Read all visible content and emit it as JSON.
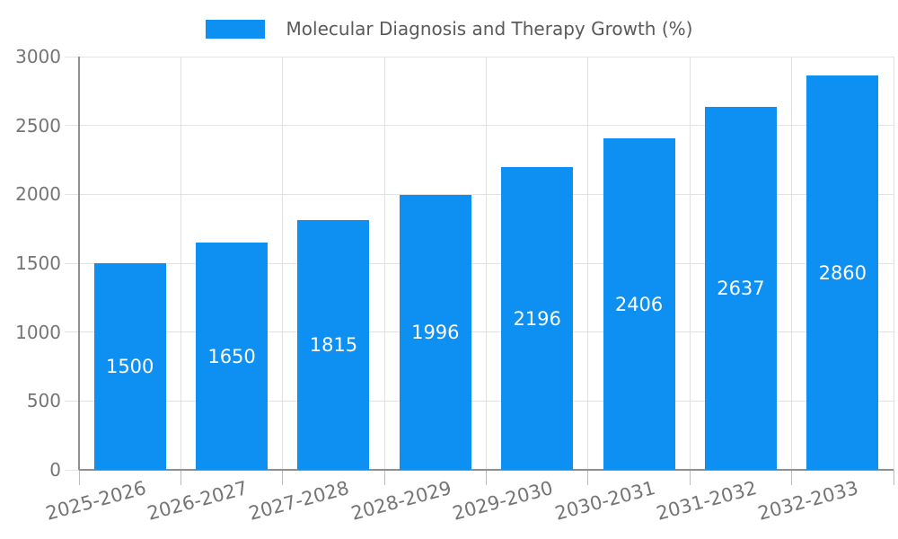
{
  "chart_data": {
    "type": "bar",
    "title": "Molecular Diagnosis and Therapy Growth (%)",
    "categories": [
      "2025-2026",
      "2026-2027",
      "2027-2028",
      "2028-2029",
      "2029-2030",
      "2030-2031",
      "2031-2032",
      "2032-2033"
    ],
    "values": [
      1500,
      1650,
      1815,
      1996,
      2196,
      2406,
      2637,
      2860
    ],
    "xlabel": "",
    "ylabel": "",
    "ylim": [
      0,
      3000
    ],
    "yticks": [
      0,
      500,
      1000,
      1500,
      2000,
      2500,
      3000
    ],
    "grid": true,
    "legend_position": "top-center",
    "value_labels_position": "inside-center",
    "colors": {
      "bar": "#0d90f2",
      "grid": "#e2e2e2",
      "axis": "#8f8f8f",
      "tick": "#bdbdbd",
      "axis_label": "#757575",
      "legend_text": "#5a5a5a",
      "value_label": "#ffffff",
      "background": "#ffffff"
    }
  }
}
